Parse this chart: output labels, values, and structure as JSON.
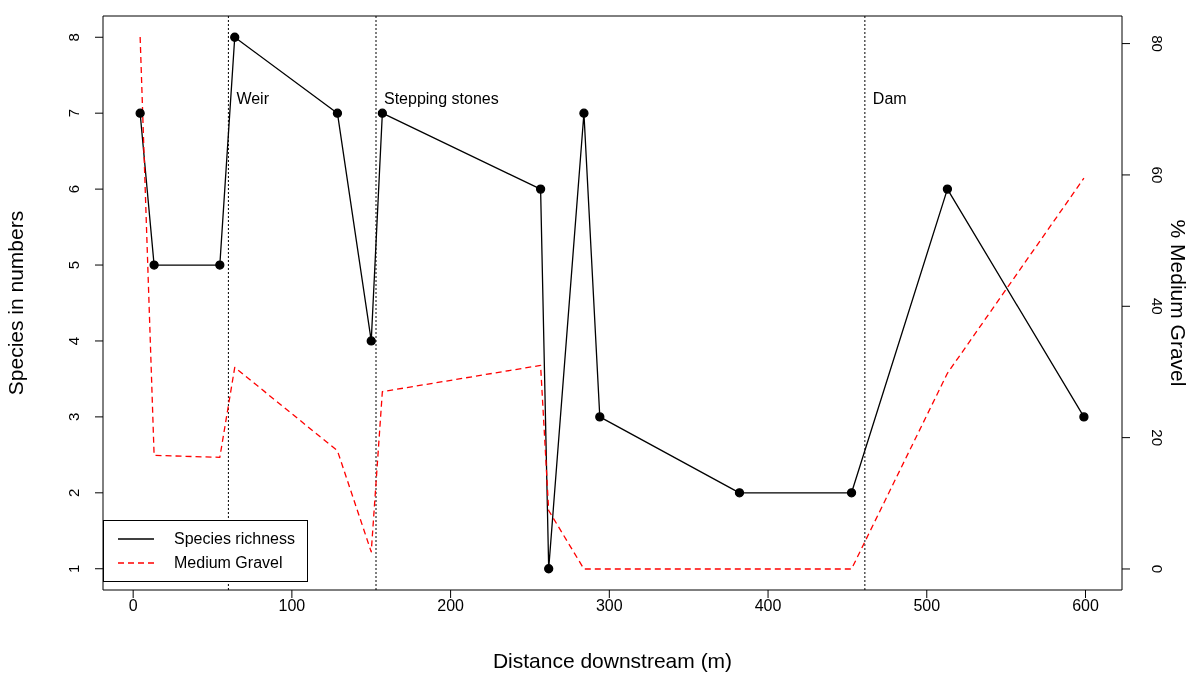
{
  "chart_data": {
    "type": "line",
    "xlabel": "Distance downstream (m)",
    "ylabel": "Species in numbers",
    "y2label": "% Medium Gravel",
    "x": [
      4.4,
      13.2,
      54.6,
      64,
      128.7,
      150,
      157,
      256.7,
      261.8,
      284,
      294,
      382,
      452.6,
      513,
      599
    ],
    "series": [
      {
        "name": "Species richness",
        "color": "#000000",
        "marker": "circle",
        "line_style": "solid",
        "values": [
          7,
          5,
          5,
          8,
          7,
          4,
          7,
          6,
          1,
          7,
          3,
          2,
          2,
          6,
          3
        ]
      },
      {
        "name": "Medium Gravel",
        "color": "#ff0000",
        "marker": "none",
        "line_style": "dashed",
        "axis": "y2",
        "values": [
          81,
          17.3,
          17,
          30.7,
          18,
          2.6,
          27,
          31,
          8.9,
          0,
          0,
          0,
          0,
          29.8,
          59.5
        ]
      }
    ],
    "xlim": [
      -19,
      623
    ],
    "xticks": [
      0,
      100,
      200,
      300,
      400,
      500,
      600
    ],
    "ylim": [
      0.72,
      8.28
    ],
    "yticks": [
      1,
      2,
      3,
      4,
      5,
      6,
      7,
      8
    ],
    "y2lim": [
      -3.2,
      84.2
    ],
    "y2ticks": [
      0,
      20,
      40,
      60,
      80
    ],
    "ref_lines": [
      {
        "axis": "x",
        "value": 60,
        "label": "Weir",
        "color": "#000000",
        "line_style": "dotted"
      },
      {
        "axis": "x",
        "value": 153,
        "label": "Stepping stones",
        "color": "#000000",
        "line_style": "dotted"
      },
      {
        "axis": "x",
        "value": 461,
        "label": "Dam",
        "color": "#000000",
        "line_style": "dotted"
      }
    ],
    "legend": "bottom left",
    "grid": false
  }
}
